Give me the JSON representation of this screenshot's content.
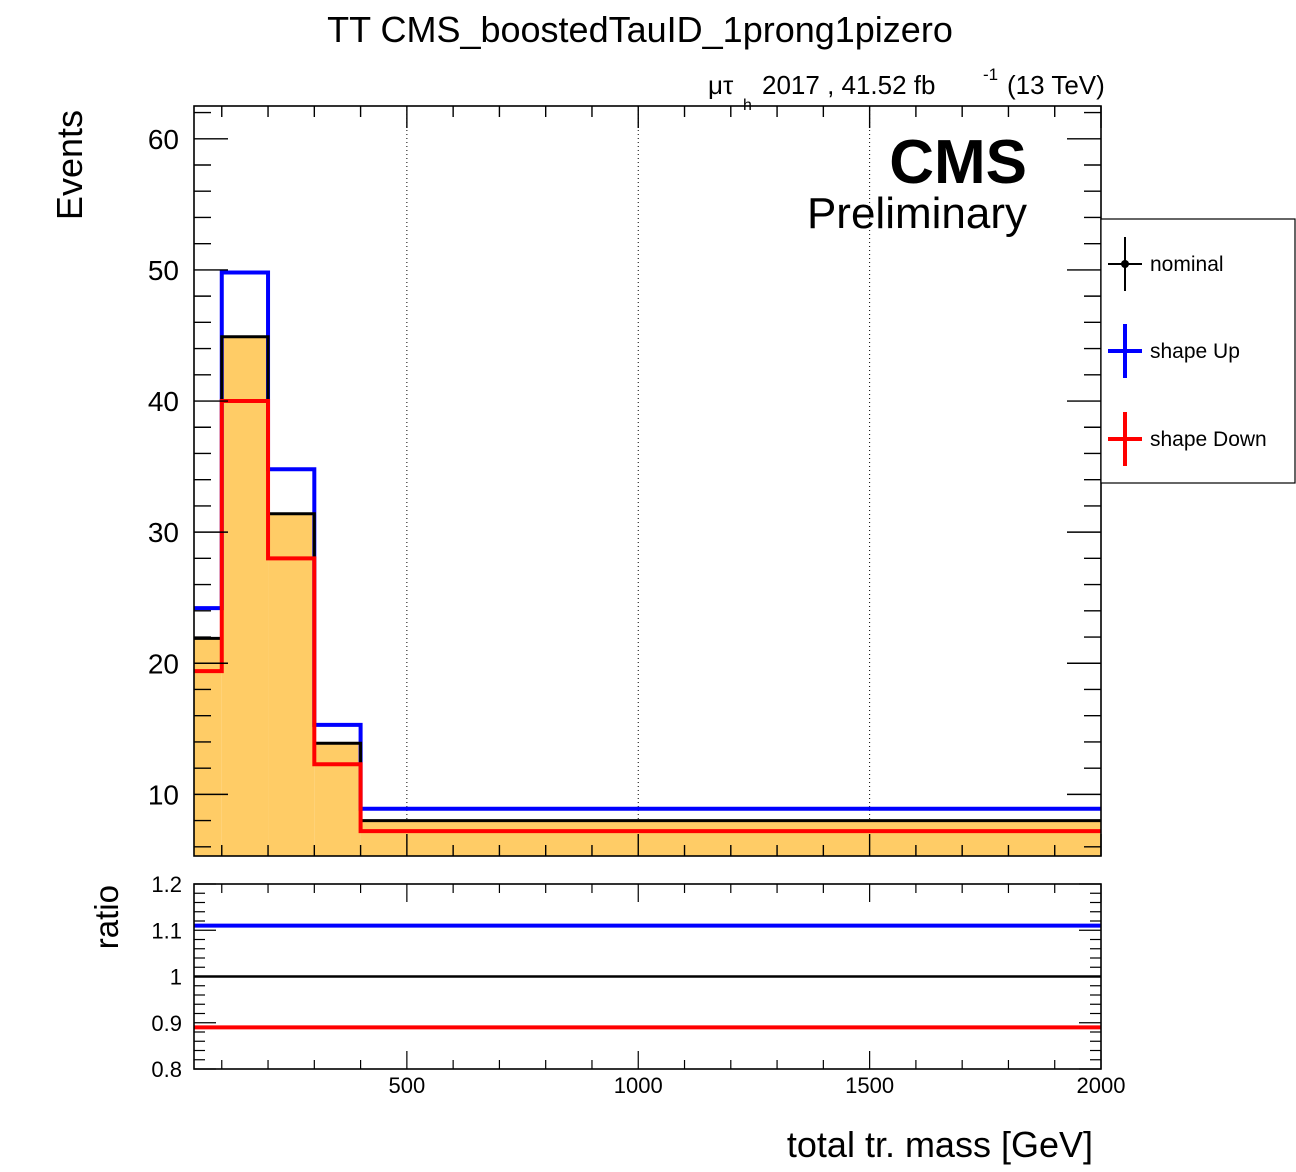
{
  "chart_data": [
    {
      "type": "histogram",
      "title": "TT CMS_boostedTauID_1prong1pizero",
      "subtitle": "μτ",
      "subtitle_sub": "h",
      "lumi_text": "2017 , 41.52 fb",
      "lumi_sup": "-1",
      "energy_text": "(13 TeV)",
      "cms_label": "CMS",
      "cms_sub": "Preliminary",
      "ylabel": "Events",
      "xlim": [
        40,
        2000
      ],
      "ylim": [
        5.3,
        62.5
      ],
      "yticks": [
        10,
        20,
        30,
        40,
        50,
        60
      ],
      "ytick_labels": [
        "10",
        "20",
        "30",
        "40",
        "50",
        "60"
      ],
      "xgrid": [
        500,
        1000,
        1500
      ],
      "bin_edges": [
        40,
        100,
        200,
        300,
        400,
        2000
      ],
      "series": [
        {
          "name": "nominal",
          "color": "#000000",
          "fill": "#ffcc66",
          "values": [
            21.9,
            44.9,
            31.4,
            13.9,
            8.0
          ]
        },
        {
          "name": "shape Up",
          "color": "#0000ff",
          "values": [
            24.2,
            49.8,
            34.8,
            15.3,
            8.9
          ]
        },
        {
          "name": "shape Down",
          "color": "#ff0000",
          "values": [
            19.4,
            40.0,
            28.0,
            12.3,
            7.2
          ]
        }
      ],
      "legend": {
        "position": "right",
        "entries": [
          "nominal",
          "shape Up",
          "shape Down"
        ]
      }
    },
    {
      "type": "line",
      "ylabel": "ratio",
      "xlabel": "total tr. mass [GeV]",
      "xlim": [
        40,
        2000
      ],
      "ylim": [
        0.8,
        1.2
      ],
      "yticks": [
        0.8,
        0.9,
        1.0,
        1.1,
        1.2
      ],
      "ytick_labels": [
        "0.8",
        "0.9",
        "1",
        "1.1",
        "1.2"
      ],
      "xticks": [
        500,
        1000,
        1500,
        2000
      ],
      "xtick_labels": [
        "500",
        "1000",
        "1500",
        "2000"
      ],
      "series": [
        {
          "name": "shape Up",
          "color": "#0000ff",
          "value": 1.11
        },
        {
          "name": "nominal",
          "color": "#000000",
          "value": 1.0
        },
        {
          "name": "shape Down",
          "color": "#ff0000",
          "value": 0.89
        }
      ]
    }
  ]
}
